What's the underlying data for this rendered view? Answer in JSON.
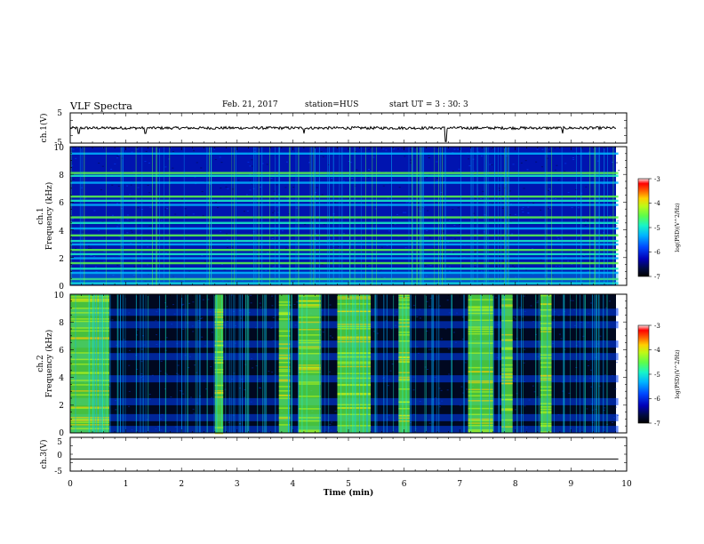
{
  "header": {
    "title": "VLF Spectra",
    "date": "Feb. 21, 2017",
    "station": "station=HUS",
    "start": "start UT =  3 : 30: 3"
  },
  "colors": {
    "colormap": [
      "#000000",
      "#000b3f",
      "#0000b8",
      "#0048ff",
      "#00b5ff",
      "#18f5c8",
      "#5dfd4a",
      "#bef917",
      "#ffcf00",
      "#ff5a00",
      "#ff0000",
      "#ffe5e5"
    ]
  },
  "chart_data": [
    {
      "type": "line",
      "ylabel": "ch.1(V)",
      "ylim": [
        -5,
        5
      ],
      "yticks": [
        "5",
        "-5"
      ],
      "series": [
        {
          "values_mean": 0.0,
          "spikes_at_min": [
            0.15,
            1.35,
            4.2,
            6.75,
            8.85
          ]
        }
      ]
    },
    {
      "type": "heatmap",
      "ylabel": [
        "ch.1",
        "Frequency (kHz)"
      ],
      "ylim": [
        0,
        10
      ],
      "yticks": [
        "0",
        "2",
        "4",
        "6",
        "8",
        "10"
      ],
      "xlim": [
        0,
        9.85
      ],
      "colorbar": {
        "label": "log(PSD)(V^2/Hz)",
        "range": [
          -7,
          -3
        ],
        "ticks": [
          "-3",
          "-4",
          "-5",
          "-6",
          "-7"
        ]
      },
      "bands_khz": [
        0.15,
        0.45,
        0.9,
        1.2,
        1.6,
        1.95,
        2.25,
        2.55,
        2.95,
        3.2,
        3.6,
        4.1,
        4.5,
        4.9,
        5.8,
        6.1,
        6.4,
        7.4,
        7.9,
        8.1,
        9.5
      ]
    },
    {
      "type": "heatmap",
      "ylabel": [
        "ch.2",
        "Frequency (kHz)"
      ],
      "ylim": [
        0,
        10
      ],
      "yticks": [
        "0",
        "2",
        "4",
        "6",
        "8",
        "10"
      ],
      "xlim": [
        0,
        9.85
      ],
      "colorbar": {
        "label": "log(PSD)(V^2/Hz)",
        "range": [
          -7,
          -3
        ],
        "ticks": [
          "-3",
          "-4",
          "-5",
          "-6",
          "-7"
        ]
      },
      "bands_khz": [
        0.25,
        1.1,
        2.25,
        3.9,
        5.5,
        6.4,
        7.8,
        8.7
      ],
      "active_intervals_min": [
        [
          0.0,
          0.7
        ],
        [
          2.6,
          2.75
        ],
        [
          3.75,
          3.95
        ],
        [
          4.1,
          4.5
        ],
        [
          4.8,
          5.4
        ],
        [
          5.9,
          6.1
        ],
        [
          7.15,
          7.6
        ],
        [
          7.75,
          7.95
        ],
        [
          8.45,
          8.65
        ]
      ]
    },
    {
      "type": "line",
      "ylabel": "ch.3(V)",
      "ylim": [
        -5,
        5
      ],
      "yticks": [
        "5",
        "0",
        "-5"
      ],
      "series": [
        {
          "values_mean": -1.4
        }
      ]
    }
  ],
  "xaxis": {
    "label": "Time (min)",
    "range": [
      0,
      10
    ],
    "ticks": [
      "0",
      "1",
      "2",
      "3",
      "4",
      "5",
      "6",
      "7",
      "8",
      "9",
      "10"
    ]
  }
}
